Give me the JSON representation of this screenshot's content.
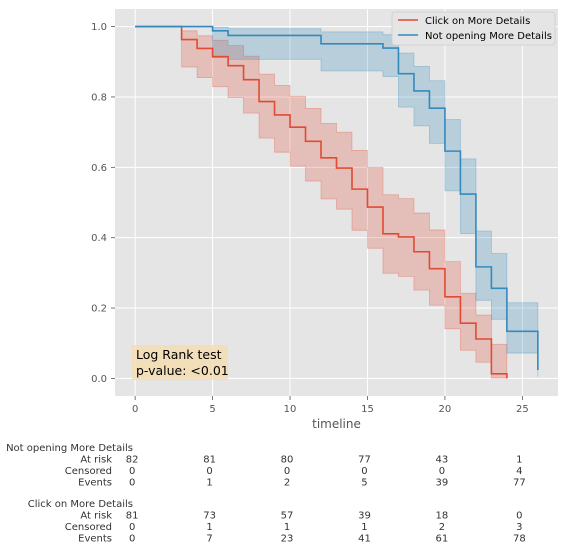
{
  "chart_data": {
    "type": "line",
    "subtype": "kaplan-meier-step",
    "xlabel": "timeline",
    "ylabel": "",
    "xlim": [
      -1.3,
      27.3
    ],
    "ylim": [
      -0.05,
      1.05
    ],
    "x_ticks": [
      0,
      5,
      10,
      15,
      20,
      25
    ],
    "y_ticks": [
      0.0,
      0.2,
      0.4,
      0.6,
      0.8,
      1.0
    ],
    "x_tick_labels": [
      "0",
      "5",
      "10",
      "15",
      "20",
      "25"
    ],
    "y_tick_labels": [
      "0.0",
      "0.2",
      "0.4",
      "0.6",
      "0.8",
      "1.0"
    ],
    "grid": true,
    "legend_position": "top-right",
    "series": [
      {
        "name": "Click on More Details",
        "color": "#e24a33",
        "x": [
          0,
          3,
          4,
          5,
          6,
          7,
          8,
          9,
          10,
          11,
          12,
          13,
          14,
          15,
          16,
          17,
          18,
          19,
          20,
          21,
          22,
          23,
          24
        ],
        "y": [
          1.0,
          0.963,
          0.938,
          0.914,
          0.889,
          0.849,
          0.787,
          0.749,
          0.714,
          0.674,
          0.627,
          0.598,
          0.538,
          0.487,
          0.411,
          0.402,
          0.36,
          0.312,
          0.232,
          0.157,
          0.112,
          0.013,
          0.0
        ],
        "ci_lower": [
          1.0,
          0.885,
          0.855,
          0.829,
          0.798,
          0.754,
          0.683,
          0.643,
          0.603,
          0.561,
          0.51,
          0.481,
          0.421,
          0.37,
          0.299,
          0.29,
          0.251,
          0.208,
          0.141,
          0.08,
          0.046,
          0.001,
          0.0
        ],
        "ci_upper": [
          1.0,
          0.988,
          0.974,
          0.961,
          0.946,
          0.916,
          0.865,
          0.833,
          0.802,
          0.767,
          0.725,
          0.7,
          0.648,
          0.6,
          0.522,
          0.511,
          0.47,
          0.422,
          0.332,
          0.242,
          0.18,
          0.097,
          0.0
        ]
      },
      {
        "name": "Not opening More Details",
        "color": "#348abd",
        "x": [
          0,
          5,
          6,
          12,
          16,
          17,
          18,
          19,
          20,
          21,
          22,
          23,
          24,
          26
        ],
        "y": [
          1.0,
          0.988,
          0.975,
          0.951,
          0.939,
          0.866,
          0.817,
          0.768,
          0.646,
          0.524,
          0.317,
          0.256,
          0.134,
          0.024
        ],
        "ci_lower": [
          1.0,
          0.917,
          0.907,
          0.874,
          0.858,
          0.771,
          0.718,
          0.668,
          0.533,
          0.412,
          0.222,
          0.168,
          0.072,
          0.004
        ],
        "ci_upper": [
          1.0,
          0.998,
          0.994,
          0.985,
          0.977,
          0.925,
          0.887,
          0.846,
          0.736,
          0.624,
          0.419,
          0.355,
          0.215,
          0.088
        ]
      }
    ],
    "annotation": {
      "line1": "Log Rank test",
      "line2": "p-value: <0.01",
      "bg_color": "#f5deb3"
    },
    "at_risk_table": {
      "tick_values": [
        "0",
        "5",
        "10",
        "15",
        "20",
        "25"
      ],
      "groups": [
        {
          "name": "Not opening More Details",
          "rows": [
            {
              "label": "At risk",
              "values": [
                "82",
                "81",
                "80",
                "77",
                "43",
                "1"
              ]
            },
            {
              "label": "Censored",
              "values": [
                "0",
                "0",
                "0",
                "0",
                "0",
                "4"
              ]
            },
            {
              "label": "Events",
              "values": [
                "0",
                "1",
                "2",
                "5",
                "39",
                "77"
              ]
            }
          ]
        },
        {
          "name": "Click on More Details",
          "rows": [
            {
              "label": "At risk",
              "values": [
                "81",
                "73",
                "57",
                "39",
                "18",
                "0"
              ]
            },
            {
              "label": "Censored",
              "values": [
                "0",
                "1",
                "1",
                "1",
                "2",
                "3"
              ]
            },
            {
              "label": "Events",
              "values": [
                "0",
                "7",
                "23",
                "41",
                "61",
                "78"
              ]
            }
          ]
        }
      ]
    }
  }
}
